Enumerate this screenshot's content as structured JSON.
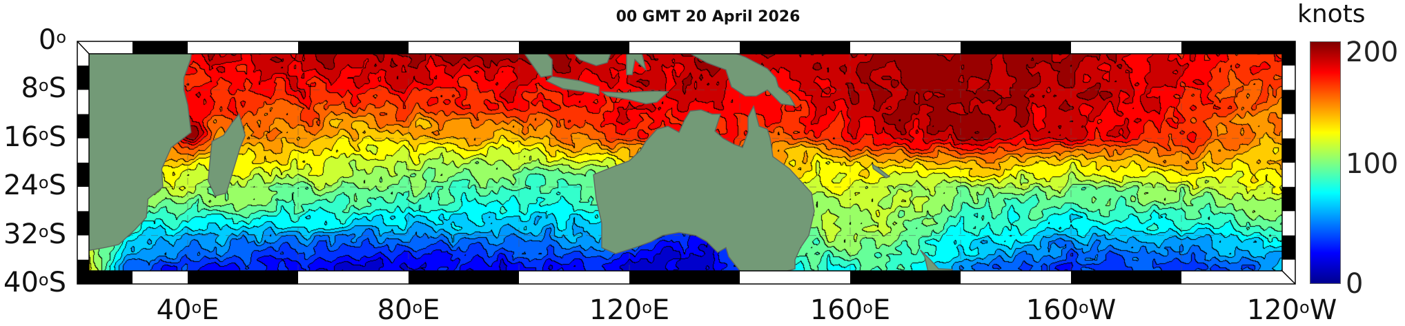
{
  "title": "00 GMT 20 April 2026",
  "map": {
    "type": "filled-contour",
    "lon_range": [
      "20°E",
      "120°W"
    ],
    "lat_range": [
      "0°",
      "40°S"
    ],
    "land_color": "#739a77",
    "colormap": "jet",
    "contour_interval": 10
  },
  "lat_labels": [
    {
      "num": "0",
      "deg": "o",
      "hem": ""
    },
    {
      "num": "8",
      "deg": "o",
      "hem": "S"
    },
    {
      "num": "16",
      "deg": "o",
      "hem": "S"
    },
    {
      "num": "24",
      "deg": "o",
      "hem": "S"
    },
    {
      "num": "32",
      "deg": "o",
      "hem": "S"
    },
    {
      "num": "40",
      "deg": "o",
      "hem": "S"
    }
  ],
  "lon_labels": [
    {
      "num": "40",
      "deg": "o",
      "hem": "E"
    },
    {
      "num": "80",
      "deg": "o",
      "hem": "E"
    },
    {
      "num": "120",
      "deg": "o",
      "hem": "E"
    },
    {
      "num": "160",
      "deg": "o",
      "hem": "E"
    },
    {
      "num": "160",
      "deg": "o",
      "hem": "W"
    },
    {
      "num": "120",
      "deg": "o",
      "hem": "W"
    }
  ],
  "colorbar": {
    "label": "knots",
    "min": 0,
    "max": 200,
    "ticks": [
      "200",
      "100",
      "0"
    ]
  }
}
